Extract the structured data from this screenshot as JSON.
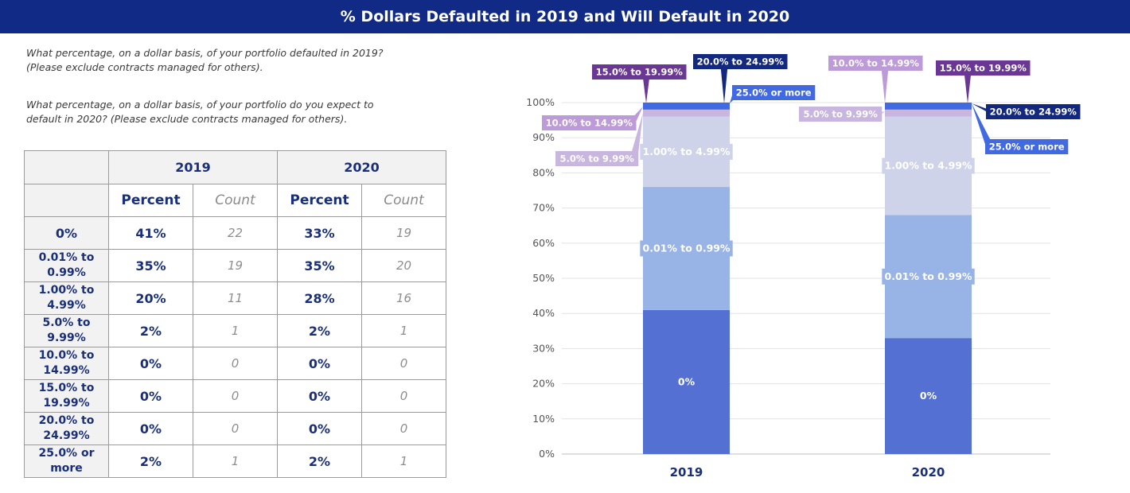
{
  "header": {
    "title": "% Dollars Defaulted in 2019 and Will Default in 2020"
  },
  "questions": {
    "q1": [
      "What percentage, on a dollar basis, of your portfolio defaulted in 2019?",
      "(Please exclude contracts managed for others)."
    ],
    "q2": [
      "What percentage, on a dollar basis, of your portfolio do you expect to",
      "default in 2020? (Please exclude contracts managed for others)."
    ]
  },
  "table": {
    "years": [
      "2019",
      "2020"
    ],
    "subheaders": {
      "percent": "Percent",
      "count": "Count"
    },
    "rows": [
      {
        "label": [
          "0%"
        ],
        "p2019": "41%",
        "c2019": "22",
        "p2020": "33%",
        "c2020": "19"
      },
      {
        "label": [
          "0.01% to",
          "0.99%"
        ],
        "p2019": "35%",
        "c2019": "19",
        "p2020": "35%",
        "c2020": "20"
      },
      {
        "label": [
          "1.00% to",
          "4.99%"
        ],
        "p2019": "20%",
        "c2019": "11",
        "p2020": "28%",
        "c2020": "16"
      },
      {
        "label": [
          "5.0% to",
          "9.99%"
        ],
        "p2019": "2%",
        "c2019": "1",
        "p2020": "2%",
        "c2020": "1"
      },
      {
        "label": [
          "10.0% to",
          "14.99%"
        ],
        "p2019": "0%",
        "c2019": "0",
        "p2020": "0%",
        "c2020": "0"
      },
      {
        "label": [
          "15.0% to",
          "19.99%"
        ],
        "p2019": "0%",
        "c2019": "0",
        "p2020": "0%",
        "c2020": "0"
      },
      {
        "label": [
          "20.0% to",
          "24.99%"
        ],
        "p2019": "0%",
        "c2019": "0",
        "p2020": "0%",
        "c2020": "0"
      },
      {
        "label": [
          "25.0% or",
          "more"
        ],
        "p2019": "2%",
        "c2019": "1",
        "p2020": "2%",
        "c2020": "1"
      }
    ]
  },
  "chart_data": {
    "type": "bar",
    "stacked": true,
    "categories": [
      "2019",
      "2020"
    ],
    "ylim": [
      0,
      100
    ],
    "yticks": [
      "0%",
      "10%",
      "20%",
      "30%",
      "40%",
      "50%",
      "60%",
      "70%",
      "80%",
      "90%",
      "100%"
    ],
    "grid": true,
    "series": [
      {
        "name": "0%",
        "values": [
          41,
          33
        ],
        "color": "#5470d3"
      },
      {
        "name": "0.01% to 0.99%",
        "values": [
          35,
          35
        ],
        "color": "#98b3e6"
      },
      {
        "name": "1.00% to 4.99%",
        "values": [
          20,
          28
        ],
        "color": "#ced3ea"
      },
      {
        "name": "5.0% to 9.99%",
        "values": [
          2,
          2
        ],
        "color": "#c9b6df"
      },
      {
        "name": "10.0% to 14.99%",
        "values": [
          0,
          0
        ],
        "color": "#bd9ad8"
      },
      {
        "name": "15.0% to 19.99%",
        "values": [
          0,
          0
        ],
        "color": "#6b3794"
      },
      {
        "name": "20.0% to 24.99%",
        "values": [
          0,
          0
        ],
        "color": "#13287f"
      },
      {
        "name": "25.0% or more",
        "values": [
          2,
          2
        ],
        "color": "#4169e1"
      }
    ]
  }
}
